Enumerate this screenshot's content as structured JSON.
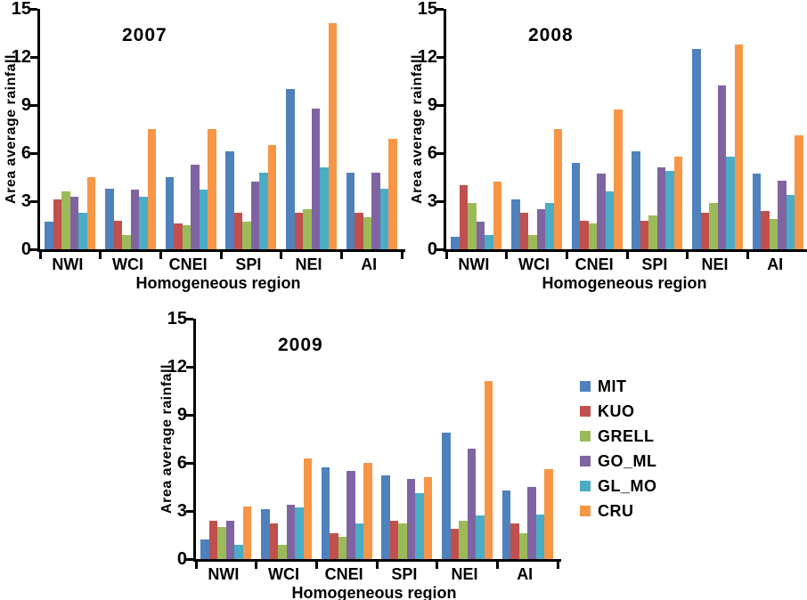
{
  "page": {
    "background": "#ffffff",
    "text_color": "#000000"
  },
  "legend": {
    "position": "right-of-2009-chart",
    "items": [
      {
        "label": "MIT",
        "color": "#4F81BD"
      },
      {
        "label": "KUO",
        "color": "#C0504D"
      },
      {
        "label": "GRELL",
        "color": "#9BBB59"
      },
      {
        "label": "GO_ML",
        "color": "#8064A2"
      },
      {
        "label": "GL_MO",
        "color": "#4BACC6"
      },
      {
        "label": "CRU",
        "color": "#F79646"
      }
    ]
  },
  "chart_data": [
    {
      "type": "bar",
      "title": "2007",
      "xlabel": "Homogeneous region",
      "ylabel": "Area average rainfall",
      "ylim": [
        0,
        15
      ],
      "yticks": [
        0,
        3,
        6,
        9,
        12,
        15
      ],
      "grid": false,
      "categories": [
        "NWI",
        "WCI",
        "CNEI",
        "SPI",
        "NEI",
        "AI"
      ],
      "series": [
        {
          "name": "MIT",
          "color": "#4F81BD",
          "values": [
            1.7,
            3.8,
            4.5,
            6.1,
            10.0,
            4.8
          ]
        },
        {
          "name": "KUO",
          "color": "#C0504D",
          "values": [
            3.1,
            1.8,
            1.6,
            2.3,
            2.3,
            2.3
          ]
        },
        {
          "name": "GRELL",
          "color": "#9BBB59",
          "values": [
            3.6,
            0.9,
            1.5,
            1.7,
            2.5,
            2.0
          ]
        },
        {
          "name": "GO_ML",
          "color": "#8064A2",
          "values": [
            3.3,
            3.7,
            5.3,
            4.2,
            8.8,
            4.8
          ]
        },
        {
          "name": "GL_MO",
          "color": "#4BACC6",
          "values": [
            2.3,
            3.3,
            3.7,
            4.8,
            5.1,
            3.8
          ]
        },
        {
          "name": "CRU",
          "color": "#F79646",
          "values": [
            4.5,
            7.5,
            7.5,
            6.5,
            14.1,
            6.9
          ]
        }
      ]
    },
    {
      "type": "bar",
      "title": "2008",
      "xlabel": "Homogeneous region",
      "ylabel": "Area average rainfall",
      "ylim": [
        0,
        15
      ],
      "yticks": [
        0,
        3,
        6,
        9,
        12,
        15
      ],
      "grid": false,
      "categories": [
        "NWI",
        "WCI",
        "CNEI",
        "SPI",
        "NEI",
        "AI"
      ],
      "series": [
        {
          "name": "MIT",
          "color": "#4F81BD",
          "values": [
            0.8,
            3.1,
            5.4,
            6.1,
            12.5,
            4.7
          ]
        },
        {
          "name": "KUO",
          "color": "#C0504D",
          "values": [
            4.0,
            2.3,
            1.8,
            1.8,
            2.3,
            2.4
          ]
        },
        {
          "name": "GRELL",
          "color": "#9BBB59",
          "values": [
            2.9,
            0.9,
            1.6,
            2.1,
            2.9,
            1.9
          ]
        },
        {
          "name": "GO_ML",
          "color": "#8064A2",
          "values": [
            1.7,
            2.5,
            4.7,
            5.1,
            10.2,
            4.3
          ]
        },
        {
          "name": "GL_MO",
          "color": "#4BACC6",
          "values": [
            0.9,
            2.9,
            3.6,
            4.9,
            5.8,
            3.4
          ]
        },
        {
          "name": "CRU",
          "color": "#F79646",
          "values": [
            4.2,
            7.5,
            8.7,
            5.8,
            12.8,
            7.1
          ]
        }
      ]
    },
    {
      "type": "bar",
      "title": "2009",
      "xlabel": "Homogeneous region",
      "ylabel": "Area average rainfall",
      "ylim": [
        0,
        15
      ],
      "yticks": [
        0,
        3,
        6,
        9,
        12,
        15
      ],
      "grid": false,
      "categories": [
        "NWI",
        "WCI",
        "CNEI",
        "SPI",
        "NEI",
        "AI"
      ],
      "series": [
        {
          "name": "MIT",
          "color": "#4F81BD",
          "values": [
            1.2,
            3.1,
            5.7,
            5.2,
            7.9,
            4.3
          ]
        },
        {
          "name": "KUO",
          "color": "#C0504D",
          "values": [
            2.4,
            2.2,
            1.6,
            2.4,
            1.9,
            2.2
          ]
        },
        {
          "name": "GRELL",
          "color": "#9BBB59",
          "values": [
            2.0,
            0.9,
            1.4,
            2.2,
            2.4,
            1.6
          ]
        },
        {
          "name": "GO_ML",
          "color": "#8064A2",
          "values": [
            2.4,
            3.4,
            5.5,
            5.0,
            6.9,
            4.5
          ]
        },
        {
          "name": "GL_MO",
          "color": "#4BACC6",
          "values": [
            0.9,
            3.2,
            2.2,
            4.1,
            2.7,
            2.8
          ]
        },
        {
          "name": "CRU",
          "color": "#F79646",
          "values": [
            3.3,
            6.3,
            6.0,
            5.1,
            11.1,
            5.6
          ]
        }
      ]
    }
  ]
}
